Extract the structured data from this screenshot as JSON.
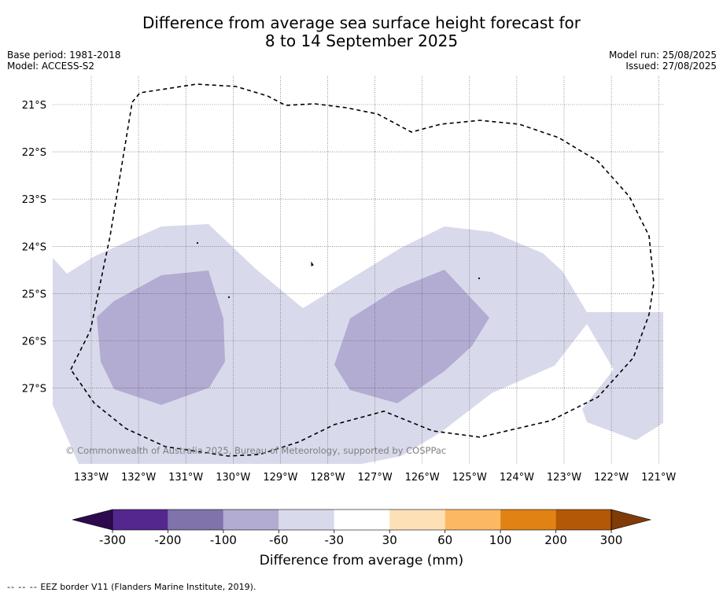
{
  "title_line1": "Difference from average sea surface height forecast for",
  "title_line2": "8 to 14 September 2025",
  "meta": {
    "base_period": "Base period: 1981-2018",
    "model": "Model: ACCESS-S2",
    "model_run": "Model run: 25/08/2025",
    "issued": "Issued: 27/08/2025"
  },
  "map": {
    "lat_labels": [
      "21°S",
      "22°S",
      "23°S",
      "24°S",
      "25°S",
      "26°S",
      "27°S"
    ],
    "lon_labels": [
      "133°W",
      "132°W",
      "131°W",
      "130°W",
      "129°W",
      "128°W",
      "127°W",
      "126°W",
      "125°W",
      "124°W",
      "123°W",
      "122°W",
      "121°W"
    ],
    "copyright": "© Commonwealth of Australia 2025, Bureau of Meteorology, supported by COSPPac"
  },
  "colorbar": {
    "label": "Difference from average (mm)",
    "ticks": [
      "-300",
      "-200",
      "-100",
      "-60",
      "-30",
      "30",
      "60",
      "100",
      "200",
      "300"
    ],
    "colors": {
      "under": "#2d0a4e",
      "bins": [
        "#54278f",
        "#8073ac",
        "#b2abd2",
        "#d8daeb",
        "#ffffff",
        "#fee0b6",
        "#fdb863",
        "#e08214",
        "#b35806"
      ],
      "over": "#7f3b08"
    }
  },
  "footnote": {
    "dash": "--  --  --",
    "text": "EEZ border V11 (Flanders Marine Institute, 2019)."
  }
}
